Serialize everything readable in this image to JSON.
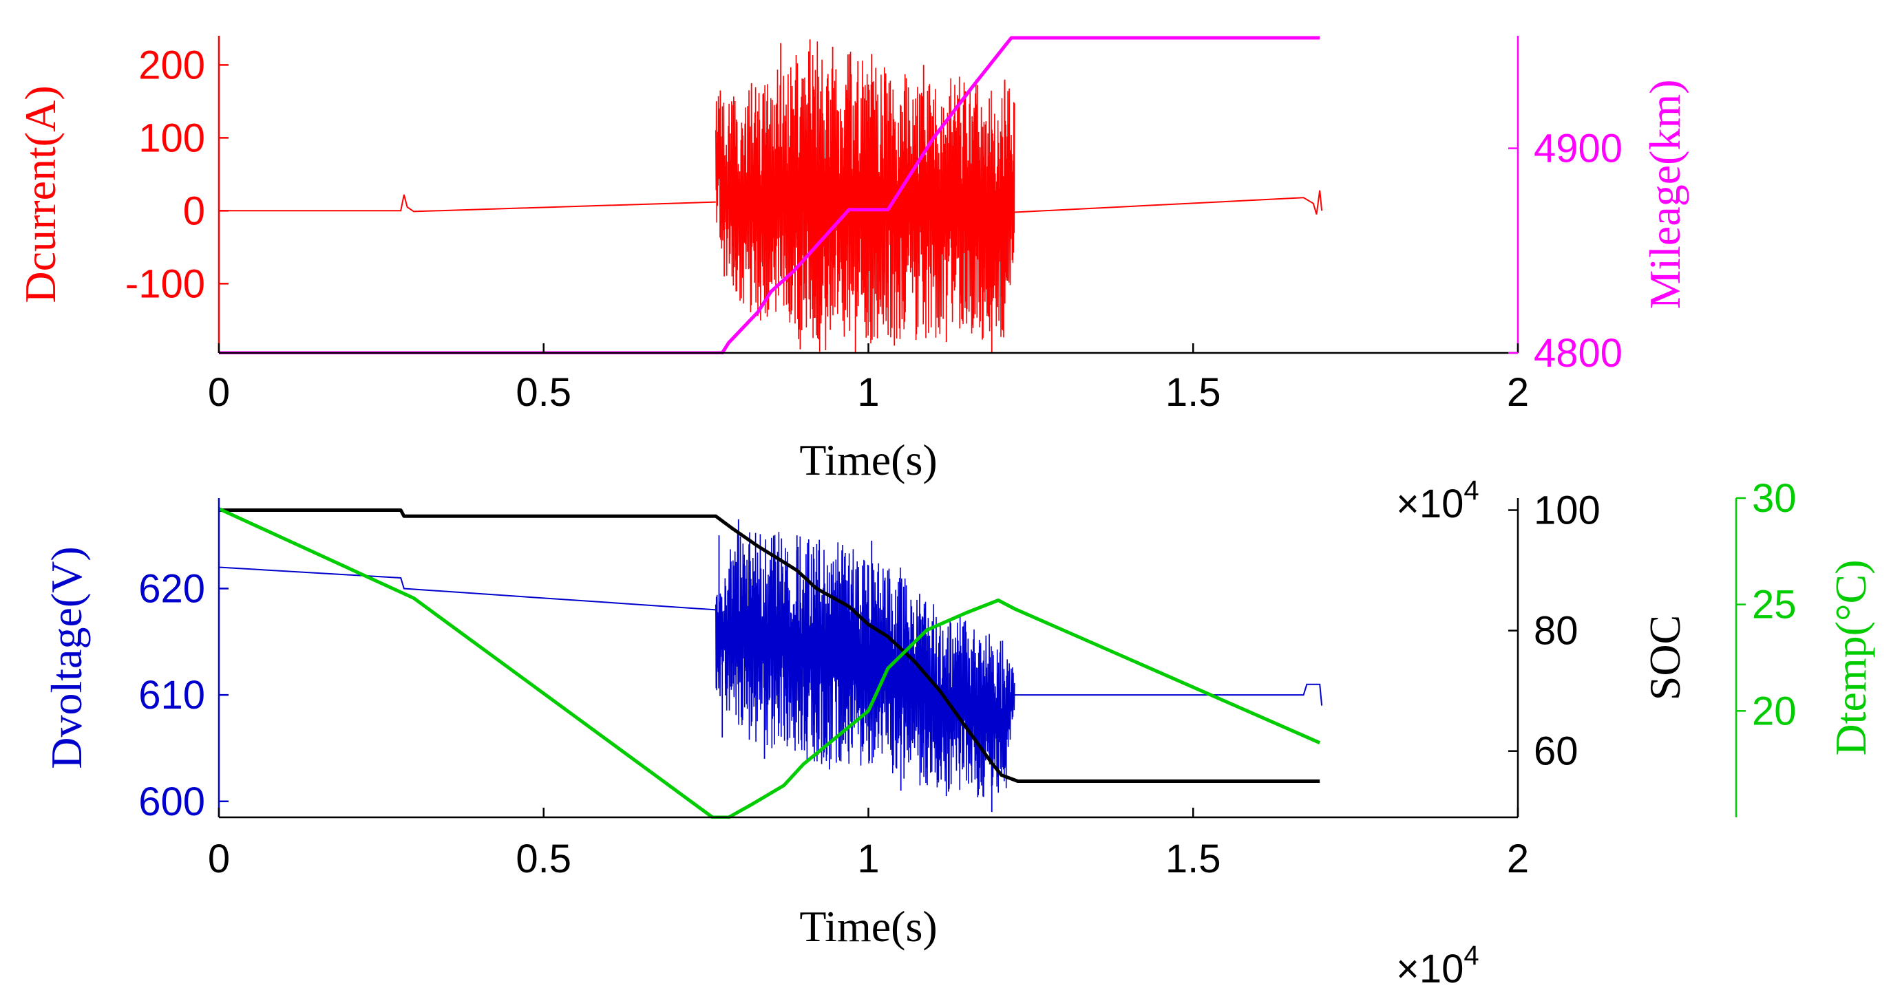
{
  "chart_data": [
    {
      "type": "line",
      "xlabel": "Time(s)",
      "x_multiplier": "×10",
      "x_multiplier_exponent": "4",
      "xlim": [
        0,
        20000
      ],
      "xticks": [
        0,
        5000,
        10000,
        15000,
        20000
      ],
      "xtick_labels": [
        "0",
        "0.5",
        "1",
        "1.5",
        "2"
      ],
      "grid": false,
      "axes": {
        "left": {
          "label": "Dcurrent(A)",
          "color": "#ff0000",
          "ylim": [
            -195,
            240
          ],
          "ticks": [
            -100,
            0,
            100,
            200
          ],
          "tick_labels": [
            "-100",
            "0",
            "100",
            "200"
          ]
        },
        "right": {
          "label": "Mileage(km)",
          "color": "#ff00ff",
          "ylim": [
            4800,
            4955
          ],
          "ticks": [
            4800,
            4900
          ],
          "tick_labels": [
            "4800",
            "4900"
          ]
        }
      },
      "series": [
        {
          "axis": "left",
          "color": "#ff0000",
          "baseline": [
            [
              0,
              0
            ],
            [
              2800,
              0
            ],
            [
              2850,
              22
            ],
            [
              2900,
              5
            ],
            [
              3000,
              -1
            ],
            [
              7650,
              12
            ],
            [
              12250,
              -2
            ],
            [
              16700,
              18
            ],
            [
              16850,
              10
            ],
            [
              16900,
              -5
            ],
            [
              16950,
              28
            ],
            [
              16980,
              0
            ]
          ],
          "active_segment": {
            "start": 7650,
            "end": 12250,
            "envelope_top": [
              [
                7650,
                170
              ],
              [
                7800,
                150
              ],
              [
                8300,
                180
              ],
              [
                8800,
                210
              ],
              [
                9200,
                235
              ],
              [
                9700,
                220
              ],
              [
                10100,
                200
              ],
              [
                10600,
                195
              ],
              [
                11300,
                185
              ],
              [
                12100,
                180
              ],
              [
                12250,
                160
              ]
            ],
            "envelope_bottom": [
              [
                7650,
                -10
              ],
              [
                7800,
                -110
              ],
              [
                8300,
                -150
              ],
              [
                8800,
                -170
              ],
              [
                9200,
                -195
              ],
              [
                9800,
                -180
              ],
              [
                10100,
                -185
              ],
              [
                10600,
                -180
              ],
              [
                11300,
                -175
              ],
              [
                12100,
                -190
              ],
              [
                12250,
                -60
              ]
            ],
            "spikes": [
              [
                7720,
                165
              ],
              [
                7780,
                -90
              ],
              [
                8200,
                175
              ],
              [
                8650,
                230
              ],
              [
                8950,
                -190
              ],
              [
                9100,
                235
              ],
              [
                9450,
                225
              ],
              [
                9800,
                -195
              ],
              [
                10050,
                215
              ],
              [
                10400,
                -185
              ],
              [
                10850,
                200
              ],
              [
                11200,
                -180
              ],
              [
                11900,
                -195
              ],
              [
                12100,
                180
              ]
            ]
          }
        },
        {
          "axis": "right",
          "color": "#ff00ff",
          "points": [
            [
              0,
              4800
            ],
            [
              7600,
              4800
            ],
            [
              7750,
              4800
            ],
            [
              7850,
              4805
            ],
            [
              8300,
              4820
            ],
            [
              8500,
              4830
            ],
            [
              8850,
              4840
            ],
            [
              9700,
              4870
            ],
            [
              9850,
              4870
            ],
            [
              10300,
              4870
            ],
            [
              11000,
              4905
            ],
            [
              11600,
              4930
            ],
            [
              12050,
              4948
            ],
            [
              12200,
              4954
            ],
            [
              16950,
              4954
            ]
          ]
        }
      ]
    },
    {
      "type": "line",
      "xlabel": "Time(s)",
      "x_multiplier": "×10",
      "x_multiplier_exponent": "4",
      "xlim": [
        0,
        20000
      ],
      "xticks": [
        0,
        5000,
        10000,
        15000,
        20000
      ],
      "xtick_labels": [
        "0",
        "0.5",
        "1",
        "1.5",
        "2"
      ],
      "grid": false,
      "axes": {
        "left": {
          "label": "Dvoltage(V)",
          "color": "#0000cc",
          "ylim": [
            598.5,
            628.5
          ],
          "ticks": [
            600,
            610,
            620
          ],
          "tick_labels": [
            "600",
            "610",
            "620"
          ]
        },
        "right": {
          "label": "SOC",
          "color": "#000000",
          "ylim": [
            49,
            102
          ],
          "ticks": [
            60,
            80,
            100
          ],
          "tick_labels": [
            "60",
            "80",
            "100"
          ]
        },
        "right2": {
          "label": "Dtemp(°C)",
          "color": "#00cc00",
          "ylim": [
            15,
            30
          ],
          "ticks": [
            20,
            25,
            30
          ],
          "tick_labels": [
            "20",
            "25",
            "30"
          ]
        }
      },
      "series": [
        {
          "axis": "left",
          "color": "#0000cc",
          "baseline": [
            [
              0,
              622
            ],
            [
              2800,
              621
            ],
            [
              2850,
              620
            ],
            [
              7650,
              618
            ],
            [
              12250,
              610
            ],
            [
              16700,
              610
            ],
            [
              16750,
              611
            ],
            [
              16950,
              611
            ],
            [
              16980,
              609
            ]
          ],
          "active_segment": {
            "start": 7650,
            "end": 12250,
            "envelope_top": [
              [
                7650,
                620
              ],
              [
                8000,
                626
              ],
              [
                8500,
                625.5
              ],
              [
                9000,
                625
              ],
              [
                9500,
                624.5
              ],
              [
                10000,
                623
              ],
              [
                10500,
                622
              ],
              [
                11000,
                619
              ],
              [
                11500,
                617
              ],
              [
                12100,
                615
              ],
              [
                12250,
                612
              ]
            ],
            "envelope_bottom": [
              [
                7650,
                610
              ],
              [
                8000,
                606
              ],
              [
                8500,
                605
              ],
              [
                9000,
                604
              ],
              [
                9500,
                603
              ],
              [
                10000,
                603
              ],
              [
                10500,
                602
              ],
              [
                11000,
                601
              ],
              [
                11500,
                600.5
              ],
              [
                12100,
                600
              ],
              [
                12250,
                608
              ]
            ],
            "spikes": [
              [
                7700,
                625
              ],
              [
                7750,
                606
              ],
              [
                8000,
                626.5
              ],
              [
                8400,
                604
              ],
              [
                8900,
                625
              ],
              [
                9400,
                603
              ],
              [
                10050,
                624.5
              ],
              [
                10500,
                601
              ],
              [
                11200,
                600.5
              ],
              [
                11900,
                599
              ]
            ]
          }
        },
        {
          "axis": "right",
          "color": "#000000",
          "points": [
            [
              0,
              100
            ],
            [
              2800,
              100
            ],
            [
              2850,
              99
            ],
            [
              7650,
              99
            ],
            [
              7900,
              97
            ],
            [
              8300,
              94
            ],
            [
              8600,
              92
            ],
            [
              8900,
              90
            ],
            [
              9200,
              87
            ],
            [
              9700,
              84
            ],
            [
              10000,
              81
            ],
            [
              10300,
              79
            ],
            [
              10700,
              75
            ],
            [
              11100,
              70
            ],
            [
              11500,
              64
            ],
            [
              11900,
              58
            ],
            [
              12050,
              56
            ],
            [
              12300,
              55
            ],
            [
              16950,
              55
            ]
          ]
        },
        {
          "axis": "right2",
          "color": "#00cc00",
          "points": [
            [
              0,
              29.5
            ],
            [
              3000,
              25.3
            ],
            [
              7600,
              15
            ],
            [
              7850,
              15
            ],
            [
              8200,
              15.6
            ],
            [
              8700,
              16.5
            ],
            [
              9000,
              17.5
            ],
            [
              9600,
              19
            ],
            [
              10000,
              20
            ],
            [
              10300,
              22
            ],
            [
              10900,
              23.8
            ],
            [
              11500,
              24.6
            ],
            [
              12000,
              25.2
            ],
            [
              12250,
              24.8
            ],
            [
              16950,
              18.5
            ]
          ]
        }
      ]
    }
  ]
}
